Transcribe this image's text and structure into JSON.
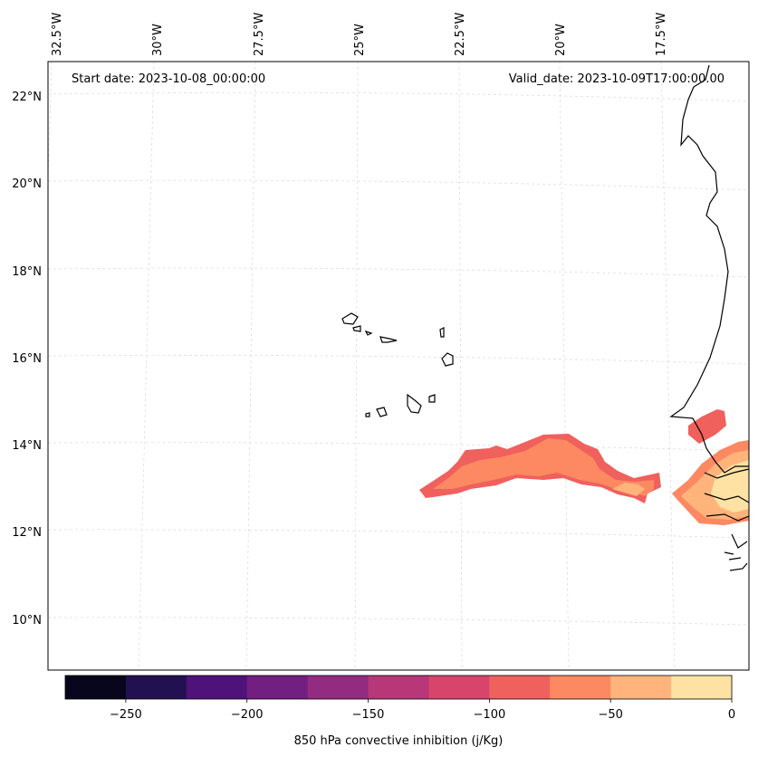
{
  "map": {
    "start_date": "Start date: 2023-10-08_00:00:00",
    "valid_date": "Valid_date: 2023-10-09T17:00:00.00",
    "lon_labels": [
      "32.5°W",
      "30°W",
      "27.5°W",
      "25°W",
      "22.5°W",
      "20°W",
      "17.5°W"
    ],
    "lat_labels": [
      "22°N",
      "20°N",
      "18°N",
      "16°N",
      "14°N",
      "12°N",
      "10°N"
    ],
    "variable": "850 hPa convective inhibition (j/Kg)",
    "land_color": "#000000",
    "grid_color": "#cccccc"
  },
  "colorbar": {
    "label": "850 hPa convective inhibition (j/Kg)",
    "tick_labels": [
      "−250",
      "−200",
      "−150",
      "−100",
      "−50",
      "0"
    ],
    "range": [
      -275,
      0
    ],
    "colors": [
      "#07061c",
      "#221150",
      "#4f127b",
      "#721f81",
      "#932b80",
      "#b73779",
      "#d8456c",
      "#f0605d",
      "#fc8961",
      "#feb47b",
      "#fde2a3"
    ]
  }
}
